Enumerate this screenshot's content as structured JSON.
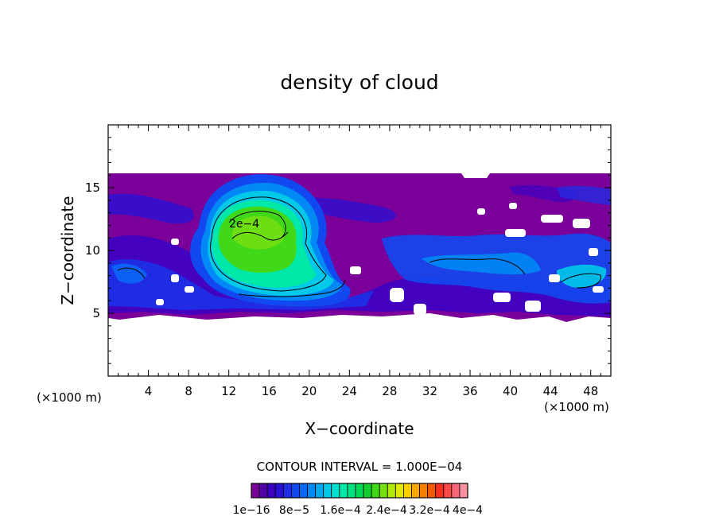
{
  "chart_data": {
    "type": "heatmap",
    "title": "density of cloud",
    "xlabel": "X−coordinate",
    "ylabel": "Z−coordinate",
    "x_unit": "(×1000 m)",
    "z_unit": "(×1000 m)",
    "xlim": [
      0,
      50
    ],
    "ylim": [
      0,
      20
    ],
    "x_ticks": [
      4,
      8,
      12,
      16,
      20,
      24,
      28,
      32,
      36,
      40,
      44,
      48
    ],
    "y_ticks": [
      5,
      10,
      15
    ],
    "contour_interval": "CONTOUR INTERVAL = 1.000E−04",
    "contour_label": "2e−4",
    "colorbar": {
      "colors": [
        "#7a0099",
        "#5300a8",
        "#3d00c2",
        "#2a12d4",
        "#1f2ee6",
        "#1248f0",
        "#0a66f5",
        "#0088f5",
        "#00a8f0",
        "#00c8e8",
        "#00e0d0",
        "#00e8a8",
        "#00e080",
        "#00d858",
        "#10d030",
        "#40d818",
        "#78e010",
        "#b0e808",
        "#e0e800",
        "#f8d000",
        "#f8a800",
        "#f88000",
        "#f85800",
        "#f83020",
        "#f84848",
        "#f86878",
        "#f890a0"
      ],
      "labels": [
        "1e−16",
        "8e−5",
        "1.6e−4",
        "2.4e−4",
        "3.2e−4",
        "4e−4"
      ]
    },
    "regions": [
      {
        "name": "background-cloud",
        "level": "1e-16",
        "color": "#7a0099"
      },
      {
        "name": "main-cloud-core",
        "center_x": 15,
        "center_z": 10.5,
        "peak": "2.4e-4",
        "color": "#40d818"
      },
      {
        "name": "right-cloud-band",
        "x_range": [
          28,
          50
        ],
        "z_range": [
          6,
          12
        ],
        "color": "#1248f0"
      }
    ]
  }
}
